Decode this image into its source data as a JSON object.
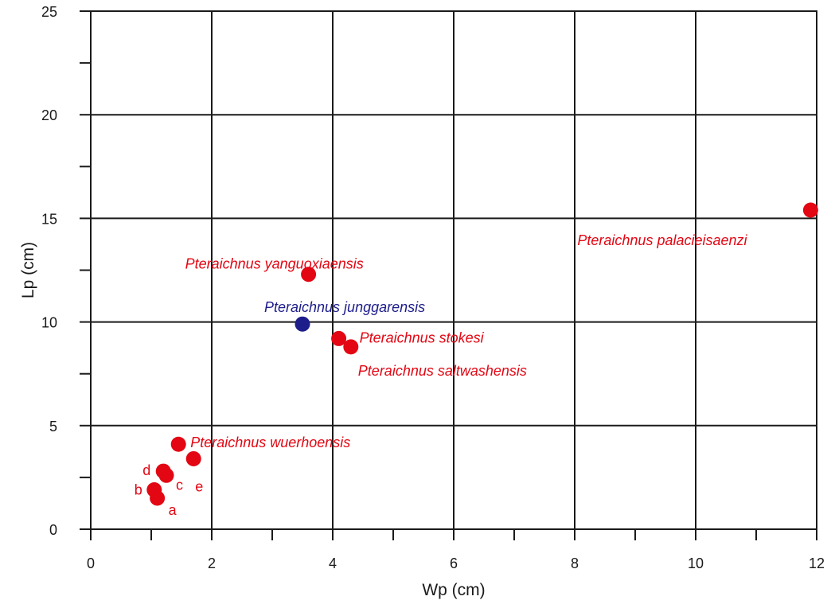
{
  "chart_data": {
    "type": "scatter",
    "title": "",
    "xlabel": "Wp (cm)",
    "ylabel": "Lp (cm)",
    "xlim": [
      0,
      12
    ],
    "ylim": [
      0,
      25
    ],
    "x_ticks": [
      "0",
      "2",
      "4",
      "6",
      "8",
      "10",
      "12"
    ],
    "y_ticks": [
      "0",
      "5",
      "10",
      "15",
      "20",
      "25"
    ],
    "grid": true,
    "colors": {
      "red": "#e30613",
      "blue": "#1d1d8c"
    },
    "points": [
      {
        "x": 11.9,
        "y": 15.4,
        "label": "Pteraichnus palacieisaenzi",
        "color": "red"
      },
      {
        "x": 3.6,
        "y": 12.3,
        "label": "Pteraichnus yanguoxiaensis",
        "color": "red"
      },
      {
        "x": 3.5,
        "y": 9.9,
        "label": "Pteraichnus junggarensis",
        "color": "blue"
      },
      {
        "x": 4.1,
        "y": 9.2,
        "label": "Pteraichnus stokesi",
        "color": "red"
      },
      {
        "x": 4.3,
        "y": 8.8,
        "label": "Pteraichnus saltwashensis",
        "color": "red"
      },
      {
        "x": 1.45,
        "y": 4.1,
        "label": "Pteraichnus wuerhoensis",
        "color": "red"
      },
      {
        "x": 1.7,
        "y": 3.4,
        "label": "e",
        "color": "red"
      },
      {
        "x": 1.2,
        "y": 2.8,
        "label": "d",
        "color": "red"
      },
      {
        "x": 1.25,
        "y": 2.6,
        "label": "c",
        "color": "red"
      },
      {
        "x": 1.05,
        "y": 1.9,
        "label": "b",
        "color": "red"
      },
      {
        "x": 1.1,
        "y": 1.5,
        "label": "a",
        "color": "red"
      }
    ]
  }
}
